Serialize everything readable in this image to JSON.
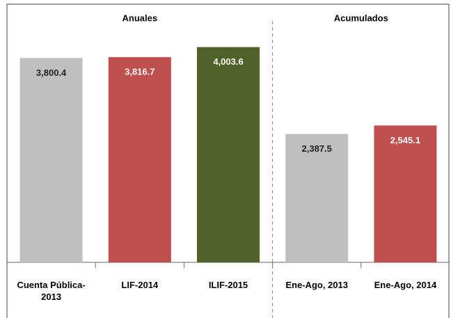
{
  "chart_data": {
    "type": "bar",
    "categories": [
      "Cuenta Pública-2013",
      "LIF-2014",
      "ILIF-2015",
      "Ene-Ago, 2013",
      "Ene-Ago, 2014"
    ],
    "values": [
      3800.4,
      3816.7,
      4003.6,
      2387.5,
      2545.1
    ],
    "value_labels": [
      "3,800.4",
      "3,816.7",
      "4,003.6",
      "2,387.5",
      "2,545.1"
    ],
    "colors": [
      "#bfbfbf",
      "#c0504d",
      "#4f6228",
      "#bfbfbf",
      "#c0504d"
    ],
    "groups": [
      {
        "name": "Anuales",
        "categories": [
          "Cuenta Pública-2013",
          "LIF-2014",
          "ILIF-2015"
        ]
      },
      {
        "name": "Acumulados",
        "categories": [
          "Ene-Ago, 2013",
          "Ene-Ago, 2014"
        ]
      }
    ],
    "ylim": [
      0,
      4750
    ]
  }
}
